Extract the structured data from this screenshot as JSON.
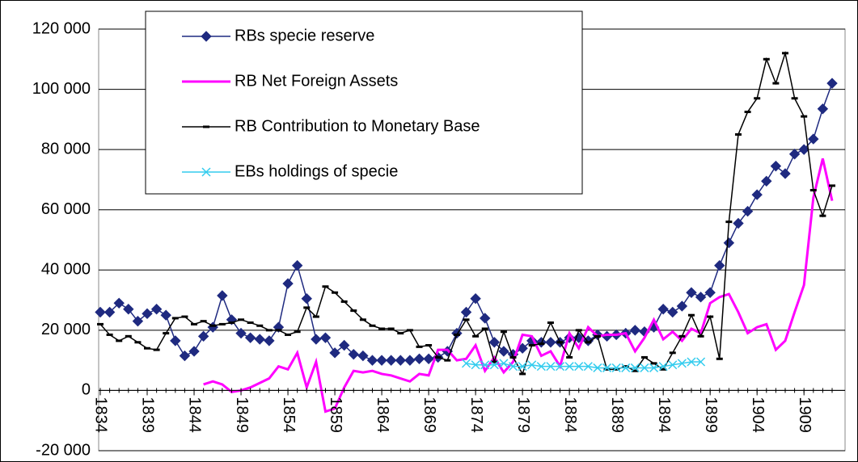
{
  "chart_data": {
    "type": "line",
    "x": [
      1834,
      1835,
      1836,
      1837,
      1838,
      1839,
      1840,
      1841,
      1842,
      1843,
      1844,
      1845,
      1846,
      1847,
      1848,
      1849,
      1850,
      1851,
      1852,
      1853,
      1854,
      1855,
      1856,
      1857,
      1858,
      1859,
      1860,
      1861,
      1862,
      1863,
      1864,
      1865,
      1866,
      1867,
      1868,
      1869,
      1870,
      1871,
      1872,
      1873,
      1874,
      1875,
      1876,
      1877,
      1878,
      1879,
      1880,
      1881,
      1882,
      1883,
      1884,
      1885,
      1886,
      1887,
      1888,
      1889,
      1890,
      1891,
      1892,
      1893,
      1894,
      1895,
      1896,
      1897,
      1898,
      1899,
      1900,
      1901,
      1902,
      1903,
      1904,
      1905,
      1906,
      1907,
      1908,
      1909,
      1910,
      1911,
      1912
    ],
    "xlim": [
      1834,
      1912
    ],
    "xticks": [
      1834,
      1839,
      1844,
      1849,
      1854,
      1859,
      1864,
      1869,
      1874,
      1879,
      1884,
      1889,
      1894,
      1899,
      1904,
      1909
    ],
    "ylim": [
      -20000,
      120000
    ],
    "yticks": [
      {
        "value": -20000,
        "label": "-20 000"
      },
      0,
      {
        "value": 20000,
        "label": "20 000"
      },
      {
        "value": 40000,
        "label": "40 000"
      },
      {
        "value": 60000,
        "label": "60 000"
      },
      {
        "value": 80000,
        "label": "80 000"
      },
      {
        "value": 100000,
        "label": "100 000"
      },
      {
        "value": 120000,
        "label": "120 000"
      }
    ],
    "grid": true,
    "series": [
      {
        "name": "RBs specie reserve",
        "color": "#1f2a80",
        "marker": "diamond",
        "values": [
          26000,
          26000,
          29000,
          27000,
          23000,
          25500,
          27000,
          25000,
          16500,
          11500,
          13000,
          18000,
          21000,
          31500,
          23500,
          19000,
          17500,
          17000,
          16500,
          21000,
          35500,
          41500,
          30500,
          17000,
          17500,
          12500,
          15000,
          12000,
          11500,
          10000,
          10000,
          10000,
          10000,
          10000,
          10500,
          10500,
          11000,
          13000,
          19000,
          26000,
          30500,
          24000,
          16000,
          13000,
          12000,
          14000,
          16500,
          16000,
          16000,
          16000,
          17500,
          17500,
          16500,
          18500,
          18000,
          18500,
          19000,
          20000,
          19500,
          21000,
          27000,
          26000,
          28000,
          32500,
          31000,
          32500,
          41500,
          49000,
          55500,
          59500,
          65000,
          69500,
          74500,
          72000,
          78500,
          80000,
          83500,
          93500,
          102000
        ]
      },
      {
        "name": "RB Net Foreign Assets",
        "color": "#ff00ff",
        "marker": "none",
        "values": [
          null,
          null,
          null,
          null,
          null,
          null,
          null,
          null,
          null,
          null,
          null,
          2000,
          3000,
          2000,
          -500,
          0,
          1000,
          2500,
          4000,
          8000,
          7000,
          12500,
          1000,
          9500,
          -7000,
          -6000,
          1000,
          6500,
          6000,
          6500,
          5500,
          5000,
          4000,
          3000,
          5500,
          5000,
          13500,
          13500,
          10000,
          10500,
          15000,
          6500,
          11000,
          6000,
          9500,
          18500,
          18000,
          11500,
          13000,
          8000,
          19000,
          14000,
          21000,
          18000,
          18500,
          18500,
          19000,
          13000,
          17500,
          23500,
          17000,
          19500,
          16500,
          20500,
          19000,
          29000,
          31000,
          32000,
          26000,
          19000,
          21000,
          22000,
          13500,
          16500,
          26000,
          35000,
          64000,
          77000,
          63000
        ]
      },
      {
        "name": "RB Contribution to Monetary Base",
        "color": "#000000",
        "marker": "dash",
        "values": [
          22000,
          18500,
          16500,
          18000,
          16000,
          14000,
          13500,
          19000,
          24000,
          24500,
          22000,
          23000,
          21500,
          22000,
          22500,
          23500,
          22500,
          21500,
          20000,
          20000,
          18500,
          19500,
          27500,
          24500,
          34500,
          32500,
          29500,
          26500,
          23500,
          21500,
          20500,
          20500,
          19000,
          20000,
          14500,
          15000,
          11000,
          10000,
          18500,
          23500,
          18000,
          20500,
          9500,
          19500,
          11000,
          5500,
          15000,
          15500,
          22500,
          16000,
          11000,
          20000,
          16000,
          18000,
          7000,
          7000,
          8000,
          6500,
          11000,
          9000,
          7000,
          12500,
          18000,
          25000,
          18000,
          24500,
          10500,
          56000,
          85000,
          92500,
          97000,
          110000,
          102000,
          112000,
          97000,
          91000,
          66500,
          58000,
          68000
        ]
      },
      {
        "name": "EBs holdings of specie",
        "color": "#33ccee",
        "marker": "x",
        "values": [
          null,
          null,
          null,
          null,
          null,
          null,
          null,
          null,
          null,
          null,
          null,
          null,
          null,
          null,
          null,
          null,
          null,
          null,
          null,
          null,
          null,
          null,
          null,
          null,
          null,
          null,
          null,
          null,
          null,
          null,
          null,
          null,
          null,
          null,
          null,
          null,
          null,
          null,
          null,
          9000,
          8500,
          8500,
          8500,
          9000,
          8000,
          8000,
          8500,
          8000,
          8000,
          8000,
          8000,
          8000,
          8000,
          7500,
          7500,
          7500,
          7500,
          7500,
          7500,
          7500,
          8000,
          8500,
          9000,
          9500,
          9500,
          null,
          null,
          null,
          null,
          null,
          null,
          null,
          null,
          null,
          null,
          null,
          null,
          null,
          null
        ]
      }
    ]
  }
}
